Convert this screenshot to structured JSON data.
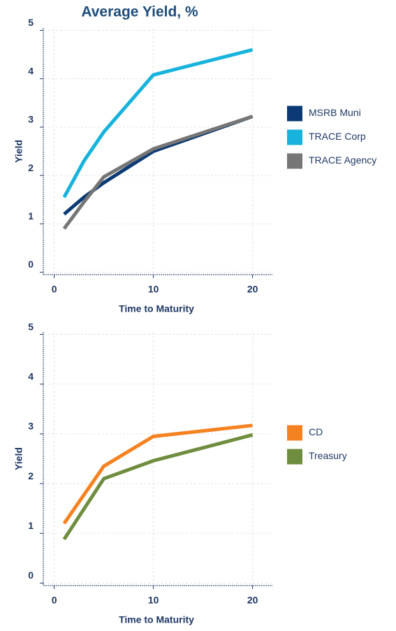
{
  "chart_data": [
    {
      "type": "line",
      "title": "Average Yield, %",
      "x_label": "Time to Maturity",
      "y_label": "Yield",
      "x": [
        1,
        3,
        5,
        10,
        20
      ],
      "series": [
        {
          "name": "MSRB Muni",
          "color": "#0b3a74",
          "values": [
            1.2,
            1.55,
            1.85,
            2.5,
            3.22
          ]
        },
        {
          "name": "TRACE Corp",
          "color": "#17b3dc",
          "values": [
            1.55,
            2.3,
            2.9,
            4.08,
            4.6
          ]
        },
        {
          "name": "TRACE Agency",
          "color": "#767676",
          "values": [
            0.9,
            1.45,
            1.97,
            2.55,
            3.22
          ]
        }
      ],
      "xlim": [
        -1.1,
        22
      ],
      "xticks": [
        0,
        10,
        20
      ],
      "ylim": [
        -0.05,
        5.05
      ],
      "yticks": [
        0,
        1,
        2,
        3,
        4,
        5
      ],
      "grid": true
    },
    {
      "type": "line",
      "x_label": "Time to Maturity",
      "y_label": "Yield",
      "x": [
        1,
        5,
        10,
        20
      ],
      "series": [
        {
          "name": "CD",
          "color": "#f58220",
          "values": [
            1.2,
            2.35,
            2.95,
            3.17
          ]
        },
        {
          "name": "Treasury",
          "color": "#6f8d3f",
          "values": [
            0.88,
            2.1,
            2.46,
            2.98
          ]
        }
      ],
      "xlim": [
        -1.1,
        22
      ],
      "xticks": [
        0,
        10,
        20
      ],
      "ylim": [
        -0.05,
        5.05
      ],
      "yticks": [
        0,
        1,
        2,
        3,
        4,
        5
      ],
      "grid": true
    }
  ]
}
